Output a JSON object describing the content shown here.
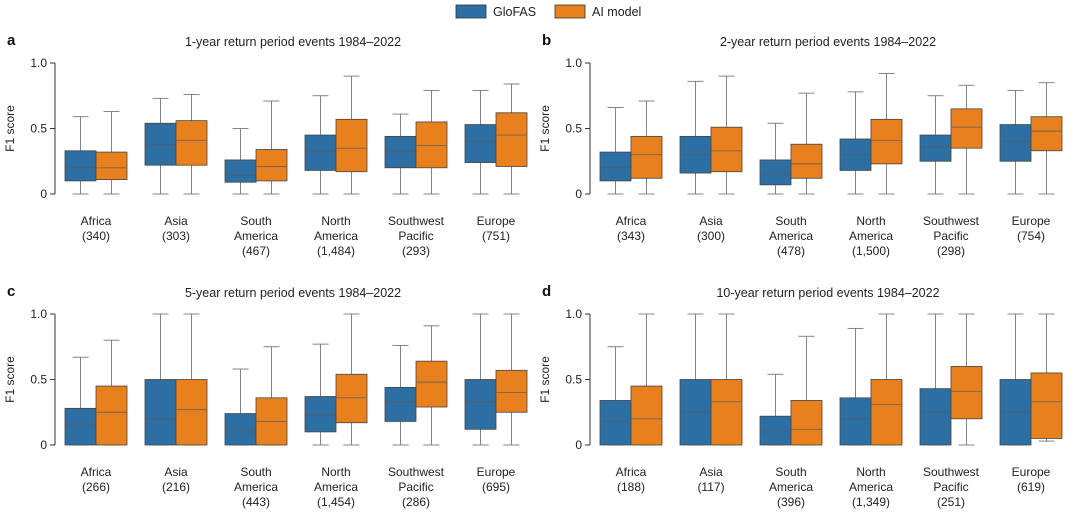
{
  "legend": [
    {
      "name": "GloFAS",
      "color": "#2d6fa3"
    },
    {
      "name": "AI model",
      "color": "#e8801e"
    }
  ],
  "ylabel": "F1 score",
  "ytick_labels": [
    "0",
    "0.5",
    "1.0"
  ],
  "chart_data": [
    {
      "type": "box",
      "panel": "a",
      "title": "1-year return period events 1984–2022",
      "ylabel": "F1 score",
      "ylim": [
        0,
        1
      ],
      "categories": [
        {
          "name": [
            "Africa"
          ],
          "n": "(340)"
        },
        {
          "name": [
            "Asia"
          ],
          "n": "(303)"
        },
        {
          "name": [
            "South",
            "America"
          ],
          "n": "(467)"
        },
        {
          "name": [
            "North",
            "America"
          ],
          "n": "(1,484)"
        },
        {
          "name": [
            "Southwest",
            "Pacific"
          ],
          "n": "(293)"
        },
        {
          "name": [
            "Europe"
          ],
          "n": "(751)"
        }
      ],
      "series": [
        {
          "name": "GloFAS",
          "boxes": [
            {
              "min": 0,
              "q1": 0.1,
              "median": 0.2,
              "q3": 0.33,
              "max": 0.59
            },
            {
              "min": 0,
              "q1": 0.22,
              "median": 0.38,
              "q3": 0.54,
              "max": 0.73
            },
            {
              "min": 0,
              "q1": 0.09,
              "median": 0.14,
              "q3": 0.26,
              "max": 0.5
            },
            {
              "min": 0,
              "q1": 0.18,
              "median": 0.33,
              "q3": 0.45,
              "max": 0.75
            },
            {
              "min": 0,
              "q1": 0.2,
              "median": 0.33,
              "q3": 0.44,
              "max": 0.61
            },
            {
              "min": 0,
              "q1": 0.24,
              "median": 0.4,
              "q3": 0.53,
              "max": 0.79
            }
          ]
        },
        {
          "name": "AI model",
          "boxes": [
            {
              "min": 0,
              "q1": 0.11,
              "median": 0.2,
              "q3": 0.32,
              "max": 0.63
            },
            {
              "min": 0,
              "q1": 0.22,
              "median": 0.41,
              "q3": 0.56,
              "max": 0.76
            },
            {
              "min": 0,
              "q1": 0.1,
              "median": 0.21,
              "q3": 0.34,
              "max": 0.71
            },
            {
              "min": 0,
              "q1": 0.17,
              "median": 0.35,
              "q3": 0.57,
              "max": 0.9
            },
            {
              "min": 0,
              "q1": 0.2,
              "median": 0.37,
              "q3": 0.55,
              "max": 0.79
            },
            {
              "min": 0,
              "q1": 0.21,
              "median": 0.45,
              "q3": 0.62,
              "max": 0.84
            }
          ]
        }
      ]
    },
    {
      "type": "box",
      "panel": "b",
      "title": "2-year return period events 1984–2022",
      "ylabel": "F1 score",
      "ylim": [
        0,
        1
      ],
      "categories": [
        {
          "name": [
            "Africa"
          ],
          "n": "(343)"
        },
        {
          "name": [
            "Asia"
          ],
          "n": "(300)"
        },
        {
          "name": [
            "South",
            "America"
          ],
          "n": "(478)"
        },
        {
          "name": [
            "North",
            "America"
          ],
          "n": "(1,500)"
        },
        {
          "name": [
            "Southwest",
            "Pacific"
          ],
          "n": "(298)"
        },
        {
          "name": [
            "Europe"
          ],
          "n": "(754)"
        }
      ],
      "series": [
        {
          "name": "GloFAS",
          "boxes": [
            {
              "min": 0,
              "q1": 0.1,
              "median": 0.2,
              "q3": 0.32,
              "max": 0.66
            },
            {
              "min": 0,
              "q1": 0.16,
              "median": 0.3,
              "q3": 0.44,
              "max": 0.86
            },
            {
              "min": 0,
              "q1": 0.07,
              "median": 0.15,
              "q3": 0.26,
              "max": 0.54
            },
            {
              "min": 0,
              "q1": 0.18,
              "median": 0.3,
              "q3": 0.42,
              "max": 0.78
            },
            {
              "min": 0,
              "q1": 0.25,
              "median": 0.36,
              "q3": 0.45,
              "max": 0.75
            },
            {
              "min": 0,
              "q1": 0.25,
              "median": 0.4,
              "q3": 0.53,
              "max": 0.79
            }
          ]
        },
        {
          "name": "AI model",
          "boxes": [
            {
              "min": 0,
              "q1": 0.12,
              "median": 0.3,
              "q3": 0.44,
              "max": 0.71
            },
            {
              "min": 0,
              "q1": 0.17,
              "median": 0.33,
              "q3": 0.51,
              "max": 0.9
            },
            {
              "min": 0,
              "q1": 0.12,
              "median": 0.23,
              "q3": 0.38,
              "max": 0.77
            },
            {
              "min": 0,
              "q1": 0.23,
              "median": 0.41,
              "q3": 0.57,
              "max": 0.92
            },
            {
              "min": 0,
              "q1": 0.35,
              "median": 0.51,
              "q3": 0.65,
              "max": 0.83
            },
            {
              "min": 0,
              "q1": 0.33,
              "median": 0.48,
              "q3": 0.59,
              "max": 0.85
            }
          ]
        }
      ]
    },
    {
      "type": "box",
      "panel": "c",
      "title": "5-year return period events 1984–2022",
      "ylabel": "F1 score",
      "ylim": [
        0,
        1
      ],
      "categories": [
        {
          "name": [
            "Africa"
          ],
          "n": "(266)"
        },
        {
          "name": [
            "Asia"
          ],
          "n": "(216)"
        },
        {
          "name": [
            "South",
            "America"
          ],
          "n": "(443)"
        },
        {
          "name": [
            "North",
            "America"
          ],
          "n": "(1,454)"
        },
        {
          "name": [
            "Southwest",
            "Pacific"
          ],
          "n": "(286)"
        },
        {
          "name": [
            "Europe"
          ],
          "n": "(695)"
        }
      ],
      "series": [
        {
          "name": "GloFAS",
          "boxes": [
            {
              "min": 0,
              "q1": 0,
              "median": 0.15,
              "q3": 0.28,
              "max": 0.67
            },
            {
              "min": 0,
              "q1": 0,
              "median": 0.2,
              "q3": 0.5,
              "max": 1.0
            },
            {
              "min": 0,
              "q1": 0,
              "median": 0.1,
              "q3": 0.24,
              "max": 0.58
            },
            {
              "min": 0,
              "q1": 0.1,
              "median": 0.23,
              "q3": 0.37,
              "max": 0.77
            },
            {
              "min": 0,
              "q1": 0.18,
              "median": 0.33,
              "q3": 0.44,
              "max": 0.76
            },
            {
              "min": 0,
              "q1": 0.12,
              "median": 0.33,
              "q3": 0.5,
              "max": 1.0
            }
          ]
        },
        {
          "name": "AI model",
          "boxes": [
            {
              "min": 0,
              "q1": 0,
              "median": 0.25,
              "q3": 0.45,
              "max": 0.8
            },
            {
              "min": 0,
              "q1": 0,
              "median": 0.27,
              "q3": 0.5,
              "max": 1.0
            },
            {
              "min": 0,
              "q1": 0,
              "median": 0.18,
              "q3": 0.36,
              "max": 0.75
            },
            {
              "min": 0,
              "q1": 0.17,
              "median": 0.36,
              "q3": 0.54,
              "max": 1.0
            },
            {
              "min": 0,
              "q1": 0.29,
              "median": 0.48,
              "q3": 0.64,
              "max": 0.91
            },
            {
              "min": 0,
              "q1": 0.25,
              "median": 0.4,
              "q3": 0.57,
              "max": 1.0
            }
          ]
        }
      ]
    },
    {
      "type": "box",
      "panel": "d",
      "title": "10-year return period events 1984–2022",
      "ylabel": "F1 score",
      "ylim": [
        0,
        1
      ],
      "categories": [
        {
          "name": [
            "Africa"
          ],
          "n": "(188)"
        },
        {
          "name": [
            "Asia"
          ],
          "n": "(117)"
        },
        {
          "name": [
            "South",
            "America"
          ],
          "n": "(396)"
        },
        {
          "name": [
            "North",
            "America"
          ],
          "n": "(1,349)"
        },
        {
          "name": [
            "Southwest",
            "Pacific"
          ],
          "n": "(251)"
        },
        {
          "name": [
            "Europe"
          ],
          "n": "(619)"
        }
      ],
      "series": [
        {
          "name": "GloFAS",
          "boxes": [
            {
              "min": 0,
              "q1": 0,
              "median": 0.18,
              "q3": 0.34,
              "max": 0.75
            },
            {
              "min": 0,
              "q1": 0,
              "median": 0.25,
              "q3": 0.5,
              "max": 1.0
            },
            {
              "min": 0,
              "q1": 0,
              "median": 0.1,
              "q3": 0.22,
              "max": 0.54
            },
            {
              "min": 0,
              "q1": 0,
              "median": 0.2,
              "q3": 0.36,
              "max": 0.89
            },
            {
              "min": 0,
              "q1": 0,
              "median": 0.25,
              "q3": 0.43,
              "max": 1.0
            },
            {
              "min": 0,
              "q1": 0,
              "median": 0.25,
              "q3": 0.5,
              "max": 1.0
            }
          ]
        },
        {
          "name": "AI model",
          "boxes": [
            {
              "min": 0,
              "q1": 0,
              "median": 0.2,
              "q3": 0.45,
              "max": 1.0
            },
            {
              "min": 0,
              "q1": 0,
              "median": 0.33,
              "q3": 0.5,
              "max": 1.0
            },
            {
              "min": 0,
              "q1": 0,
              "median": 0.12,
              "q3": 0.34,
              "max": 0.83
            },
            {
              "min": 0,
              "q1": 0,
              "median": 0.31,
              "q3": 0.5,
              "max": 1.0
            },
            {
              "min": 0,
              "q1": 0.2,
              "median": 0.41,
              "q3": 0.6,
              "max": 1.0
            },
            {
              "min": 0.03,
              "q1": 0.05,
              "median": 0.33,
              "q3": 0.55,
              "max": 1.0
            }
          ]
        }
      ]
    }
  ]
}
